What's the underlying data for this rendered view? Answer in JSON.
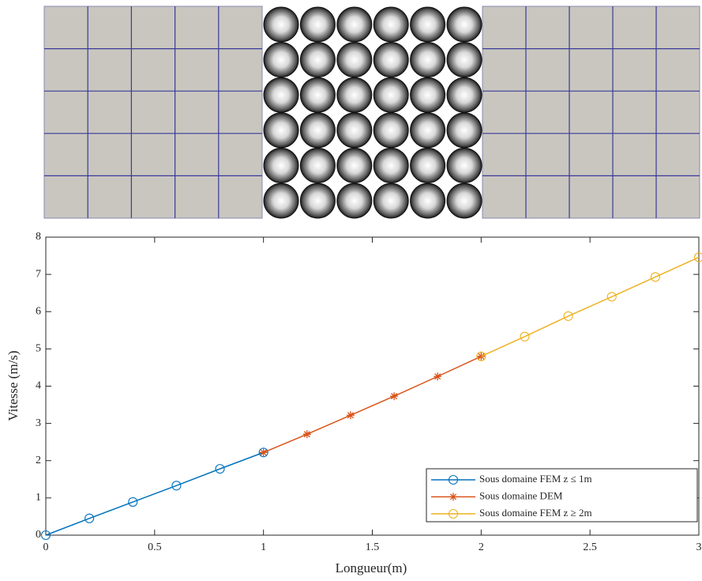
{
  "chart_data": {
    "type": "line",
    "xlabel": "Longueur(m)",
    "ylabel": "Vitesse (m/s)",
    "xlim": [
      0,
      3
    ],
    "ylim": [
      0,
      8
    ],
    "xticks": [
      0,
      0.5,
      1,
      1.5,
      2,
      2.5,
      3
    ],
    "yticks": [
      0,
      1,
      2,
      3,
      4,
      5,
      6,
      7,
      8
    ],
    "legend": "lower right",
    "series": [
      {
        "name": "Sous domaine FEM z ≤ 1m",
        "color": "#0072bd",
        "marker": "o",
        "x": [
          0,
          0.2,
          0.4,
          0.6,
          0.8,
          1.0
        ],
        "values": [
          0,
          0.45,
          0.89,
          1.33,
          1.78,
          2.22
        ]
      },
      {
        "name": "Sous domaine DEM",
        "color": "#d95319",
        "marker": "*",
        "x": [
          1.0,
          1.2,
          1.4,
          1.6,
          1.8,
          2.0
        ],
        "values": [
          2.22,
          2.71,
          3.22,
          3.73,
          4.26,
          4.8
        ]
      },
      {
        "name": "Sous domaine FEM z ≥ 2m",
        "color": "#edb120",
        "marker": "o",
        "x": [
          2.0,
          2.2,
          2.4,
          2.6,
          2.8,
          3.0
        ],
        "values": [
          4.8,
          5.33,
          5.88,
          6.4,
          6.93,
          7.46
        ]
      }
    ]
  }
}
